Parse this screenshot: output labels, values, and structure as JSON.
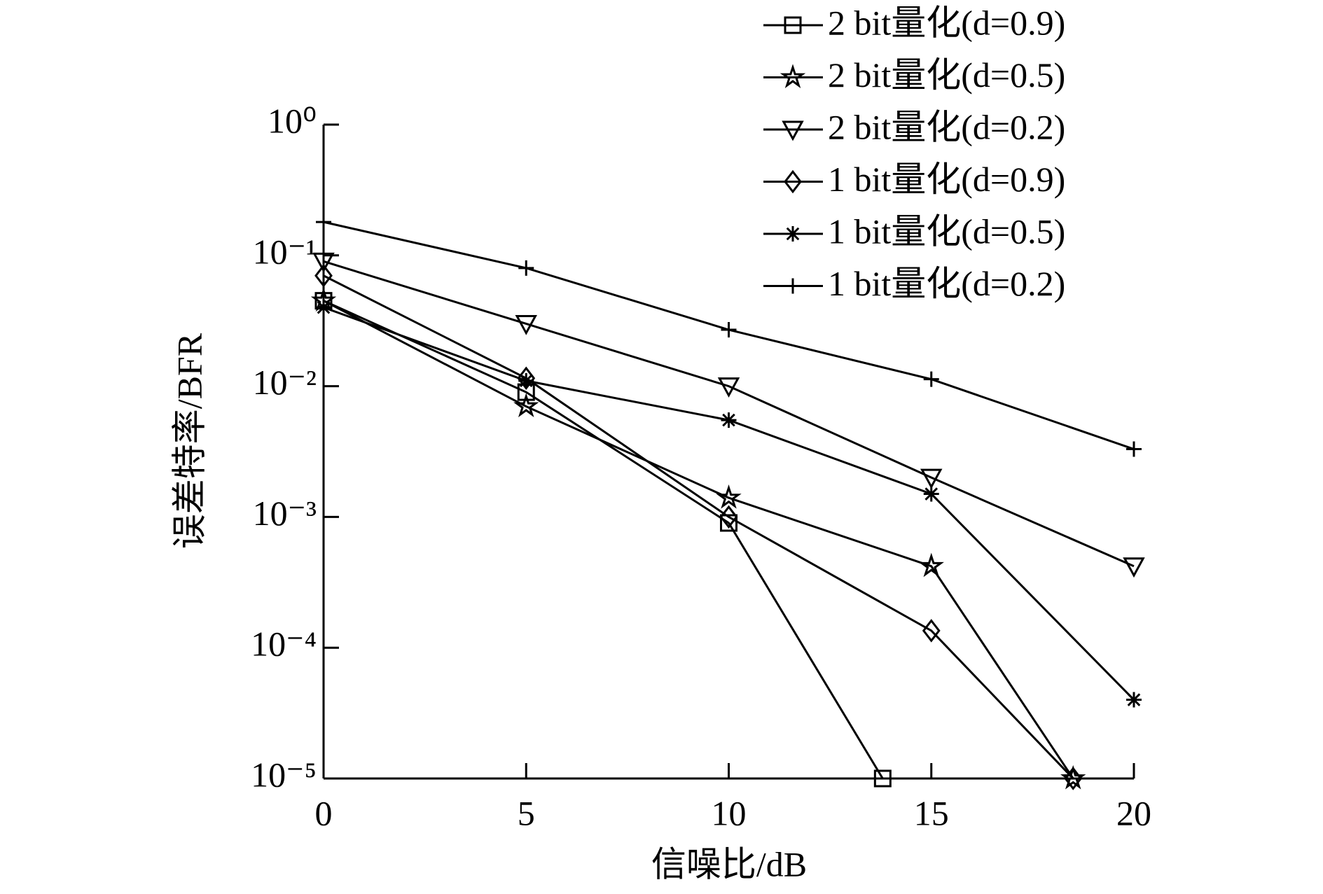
{
  "chart_data": {
    "type": "line",
    "x_label": "信噪比/dB",
    "y_label": "误差特率/BFR",
    "log_y": true,
    "legend": "top-right",
    "xlim": [
      0,
      20
    ],
    "xticks": [
      0,
      5,
      10,
      15,
      20
    ],
    "ylim": [
      1e-05,
      1
    ],
    "yticks": [
      {
        "value": 1,
        "label": "10⁰"
      },
      {
        "value": 0.1,
        "label": "10⁻¹"
      },
      {
        "value": 0.01,
        "label": "10⁻²"
      },
      {
        "value": 0.001,
        "label": "10⁻³"
      },
      {
        "value": 0.0001,
        "label": "10⁻⁴"
      },
      {
        "value": 1e-05,
        "label": "10⁻⁵"
      }
    ],
    "series": [
      {
        "name": "2 bit量化(d=0.9)",
        "color": "#000000",
        "marker": "square",
        "x": [
          0,
          5,
          10,
          13.8
        ],
        "values": [
          0.045,
          0.009,
          0.0009,
          1e-05
        ]
      },
      {
        "name": "2 bit量化(d=0.5)",
        "color": "#000000",
        "marker": "star",
        "x": [
          0,
          5,
          10,
          15,
          18.5
        ],
        "values": [
          0.045,
          0.007,
          0.0014,
          0.00042,
          1e-05
        ]
      },
      {
        "name": "2 bit量化(d=0.2)",
        "color": "#000000",
        "marker": "triangle-down",
        "x": [
          0,
          5,
          10,
          15,
          20
        ],
        "values": [
          0.09,
          0.03,
          0.01,
          0.002,
          0.00042
        ]
      },
      {
        "name": "1 bit量化(d=0.9)",
        "color": "#000000",
        "marker": "diamond",
        "x": [
          0,
          5,
          10,
          15,
          18.5
        ],
        "values": [
          0.07,
          0.0115,
          0.001,
          0.000135,
          1e-05
        ]
      },
      {
        "name": "1 bit量化(d=0.5)",
        "color": "#000000",
        "marker": "asterisk",
        "x": [
          0,
          5,
          10,
          15,
          20
        ],
        "values": [
          0.04,
          0.011,
          0.0055,
          0.0015,
          4e-05
        ]
      },
      {
        "name": "1 bit量化(d=0.2)",
        "color": "#000000",
        "marker": "plus",
        "x": [
          0,
          5,
          10,
          15,
          20
        ],
        "values": [
          0.18,
          0.08,
          0.027,
          0.0113,
          0.0033
        ]
      }
    ]
  }
}
